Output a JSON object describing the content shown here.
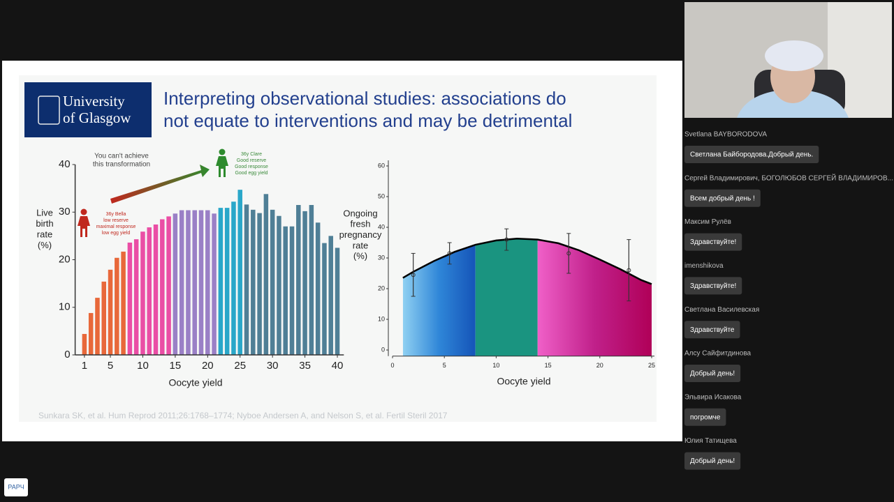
{
  "slide": {
    "logo": [
      "University",
      "of Glasgow"
    ],
    "title": [
      "Interpreting observational studies: associations do",
      "not equate to interventions and may be detrimental"
    ],
    "annotations": {
      "arrow": [
        "You can't achieve",
        "this transformation"
      ],
      "low": [
        "36y Bella",
        "low reserve",
        "maximal response",
        "low egg yield"
      ],
      "high": [
        "36y Clare",
        "Good reserve",
        "Good response",
        "Good egg yield"
      ]
    },
    "citation": "Sunkara SK, et al. Hum Reprod 2011;26:1768–1774; Nyboe Andersen A, and Nelson S, et al. Fertil Steril 2017"
  },
  "chart_data": [
    {
      "type": "bar",
      "xlabel": "Oocyte yield",
      "ylabel": [
        "Live",
        "birth",
        "rate",
        "(%)"
      ],
      "x": [
        1,
        2,
        3,
        4,
        5,
        6,
        7,
        8,
        9,
        10,
        11,
        12,
        13,
        14,
        15,
        16,
        17,
        18,
        19,
        20,
        21,
        22,
        23,
        24,
        25,
        26,
        27,
        28,
        29,
        30,
        31,
        32,
        33,
        34,
        35,
        36,
        37,
        38,
        39,
        40
      ],
      "values": [
        4.4,
        8.8,
        12,
        15.4,
        17.9,
        20.4,
        21.7,
        23.6,
        24.3,
        25.9,
        26.8,
        27.4,
        28.5,
        29.1,
        29.7,
        30.4,
        30.4,
        30.4,
        30.4,
        30.4,
        29.7,
        30.9,
        30.9,
        32.2,
        34.7,
        31.6,
        30.5,
        29.8,
        33.8,
        30.5,
        29.2,
        27,
        27,
        31.5,
        30.2,
        31.5,
        27.8,
        23.5,
        25,
        22.5
      ],
      "colors": [
        "#e8683a",
        "#e8683a",
        "#e8683a",
        "#e8683a",
        "#e8683a",
        "#e8683a",
        "#e8683a",
        "#ea4ea5",
        "#ea4ea5",
        "#ea4ea5",
        "#ea4ea5",
        "#ea4ea5",
        "#ea4ea5",
        "#ea4ea5",
        "#9a80c6",
        "#9a80c6",
        "#9a80c6",
        "#9a80c6",
        "#9a80c6",
        "#9a80c6",
        "#9a80c6",
        "#2aa7c9",
        "#2aa7c9",
        "#2aa7c9",
        "#2aa7c9",
        "#4f7f96",
        "#4f7f96",
        "#4f7f96",
        "#4f7f96",
        "#4f7f96",
        "#4f7f96",
        "#4f7f96",
        "#4f7f96",
        "#4f7f96",
        "#4f7f96",
        "#4f7f96",
        "#4f7f96",
        "#4f7f96",
        "#4f7f96",
        "#4f7f96"
      ],
      "xlim": [
        0,
        41
      ],
      "xticks": [
        1,
        5,
        10,
        15,
        20,
        25,
        30,
        35,
        40
      ],
      "ylim": [
        0,
        40
      ],
      "yticks": [
        0,
        10,
        20,
        30,
        40
      ]
    },
    {
      "type": "line",
      "xlabel": "Oocyte yield",
      "ylabel": [
        "Ongoing",
        "fresh",
        "pregnancy",
        "rate",
        "(%)"
      ],
      "x": [
        1,
        2,
        4,
        6,
        8,
        10,
        12,
        14,
        16,
        18,
        20,
        22,
        24,
        25
      ],
      "values": [
        23.5,
        25.5,
        29,
        32,
        34.3,
        35.7,
        36.3,
        36,
        34.8,
        32.5,
        29.5,
        26.3,
        22.8,
        21.5
      ],
      "color": "#000000",
      "bands": [
        {
          "from": 1,
          "to": 8,
          "color": "#1666c8"
        },
        {
          "from": 8,
          "to": 14,
          "color": "#1a9480"
        },
        {
          "from": 14,
          "to": 25,
          "color": "#d0309a"
        }
      ],
      "points": {
        "x": [
          2,
          5.5,
          11,
          17,
          22.8
        ],
        "values": [
          24.5,
          31.5,
          36,
          31.5,
          26
        ],
        "errors": [
          7,
          3.5,
          3.5,
          6.5,
          10
        ]
      },
      "xlim": [
        0,
        25
      ],
      "xticks": [
        0,
        5,
        10,
        15,
        20,
        25
      ],
      "ylim": [
        -2,
        60
      ],
      "yticks": [
        0,
        10,
        20,
        30,
        40,
        50,
        60
      ]
    }
  ],
  "chat": [
    {
      "name": "Svetlana BAYBORODOVA",
      "message": "Светлана Байбородова.Добрый день."
    },
    {
      "name": "Сергей Владимирович, БОГОЛЮБОВ СЕРГЕЙ ВЛАДИМИРОВ...",
      "message": "Всем добрый день !"
    },
    {
      "name": "Максим Рулёв",
      "message": "Здравствуйте!"
    },
    {
      "name": "imenshikova",
      "message": "Здравствуйте!"
    },
    {
      "name": "Светлана Василевская",
      "message": "Здравствуйте"
    },
    {
      "name": "Алсу Сайфитдинова",
      "message": "Добрый день!"
    },
    {
      "name": "Эльвира Исакова",
      "message": "погромче"
    },
    {
      "name": "Юлия Татищева",
      "message": "Добрый день!"
    }
  ],
  "brand": "РАРЧ"
}
